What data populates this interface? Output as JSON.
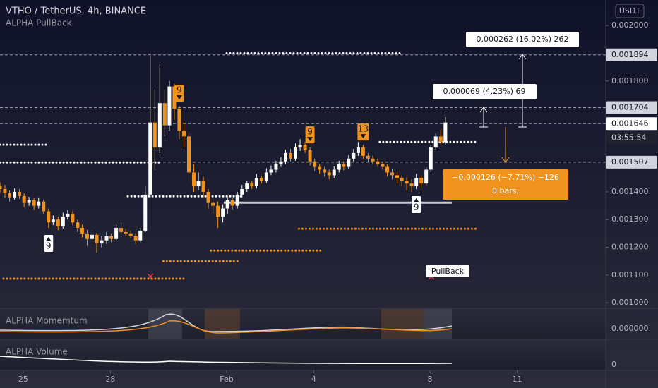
{
  "chart_data": {
    "type": "candlestick",
    "title": "VTHO / TetherUS, 4h, BINANCE",
    "subtitle": "ALPHA PullBack",
    "currency_button": "USDT",
    "x": [
      24.2,
      24.37,
      24.53,
      24.7,
      24.87,
      25.03,
      25.2,
      25.37,
      25.53,
      25.7,
      25.87,
      26.03,
      26.2,
      26.37,
      26.53,
      26.7,
      26.87,
      27.03,
      27.2,
      27.37,
      27.53,
      27.7,
      27.87,
      28.03,
      28.2,
      28.37,
      28.53,
      28.7,
      28.87,
      29.03,
      29.2,
      29.37,
      29.53,
      29.7,
      29.87,
      30.03,
      30.2,
      30.37,
      30.53,
      30.7,
      30.87,
      31.03,
      31.2,
      31.37,
      31.53,
      31.7,
      31.87,
      32.03,
      32.2,
      32.37,
      32.53,
      32.7,
      32.87,
      33.03,
      33.2,
      33.37,
      33.53,
      33.7,
      33.87,
      34.03,
      34.2,
      34.37,
      34.53,
      34.7,
      34.87,
      35.03,
      35.2,
      35.37,
      35.53,
      35.7,
      35.87,
      36.03,
      36.2,
      36.37,
      36.53,
      36.7,
      36.87,
      37.03,
      37.2,
      37.37,
      37.53,
      37.7,
      37.87,
      38.03,
      38.2,
      38.37,
      38.53,
      38.7,
      38.87,
      39.03,
      39.2,
      39.37,
      39.53
    ],
    "open": [
      0.00142,
      0.00141,
      0.001395,
      0.00138,
      0.0014,
      0.001385,
      0.00136,
      0.00137,
      0.00135,
      0.001365,
      0.00133,
      0.00129,
      0.0013,
      0.001275,
      0.00131,
      0.00132,
      0.00129,
      0.00127,
      0.00125,
      0.00123,
      0.001245,
      0.001215,
      0.001225,
      0.00124,
      0.00123,
      0.00127,
      0.001255,
      0.00125,
      0.00124,
      0.001225,
      0.00126,
      0.00139,
      0.00165,
      0.00156,
      0.00172,
      0.00164,
      0.00178,
      0.0017,
      0.00162,
      0.0016,
      0.00147,
      0.00142,
      0.00144,
      0.0014,
      0.00136,
      0.00135,
      0.00131,
      0.00134,
      0.00137,
      0.00135,
      0.00139,
      0.00141,
      0.00143,
      0.00142,
      0.00145,
      0.00144,
      0.00147,
      0.00148,
      0.0015,
      0.00151,
      0.00154,
      0.00152,
      0.00156,
      0.00157,
      0.00155,
      0.00151,
      0.00149,
      0.00148,
      0.00147,
      0.00146,
      0.00148,
      0.0015,
      0.00149,
      0.00152,
      0.00154,
      0.00156,
      0.00153,
      0.00152,
      0.00151,
      0.0015,
      0.00149,
      0.00147,
      0.00146,
      0.00145,
      0.00144,
      0.00143,
      0.00142,
      0.00145,
      0.00143,
      0.00148,
      0.00156,
      0.0016,
      0.00158
    ],
    "high": [
      0.001435,
      0.001425,
      0.001405,
      0.001412,
      0.00141,
      0.001395,
      0.001382,
      0.001378,
      0.00138,
      0.001372,
      0.00134,
      0.001315,
      0.00131,
      0.001325,
      0.001335,
      0.00133,
      0.0013,
      0.001282,
      0.001262,
      0.001258,
      0.001252,
      0.00124,
      0.001255,
      0.00125,
      0.001282,
      0.00129,
      0.001268,
      0.00126,
      0.00125,
      0.00127,
      0.00142,
      0.00189,
      0.00177,
      0.00186,
      0.00177,
      0.0018,
      0.00179,
      0.00171,
      0.00165,
      0.00161,
      0.0015,
      0.00147,
      0.001455,
      0.00141,
      0.001375,
      0.001365,
      0.001355,
      0.001385,
      0.00138,
      0.0014,
      0.001425,
      0.00144,
      0.00144,
      0.001465,
      0.001458,
      0.001485,
      0.001495,
      0.001512,
      0.001525,
      0.001552,
      0.001555,
      0.001575,
      0.00159,
      0.00158,
      0.00156,
      0.00152,
      0.0015,
      0.00149,
      0.00148,
      0.001492,
      0.001512,
      0.00151,
      0.001532,
      0.001555,
      0.00158,
      0.00157,
      0.00154,
      0.00153,
      0.00152,
      0.00151,
      0.0015,
      0.001482,
      0.001472,
      0.00146,
      0.001452,
      0.001445,
      0.001465,
      0.00146,
      0.00149,
      0.00157,
      0.00161,
      0.001625,
      0.00167
    ],
    "low": [
      0.001398,
      0.00138,
      0.001365,
      0.001372,
      0.001375,
      0.001345,
      0.00135,
      0.001335,
      0.00134,
      0.00132,
      0.00127,
      0.00128,
      0.001262,
      0.001268,
      0.0013,
      0.00128,
      0.001255,
      0.001235,
      0.001205,
      0.00122,
      0.00118,
      0.0012,
      0.001212,
      0.001218,
      0.001225,
      0.001245,
      0.00124,
      0.001232,
      0.001212,
      0.001218,
      0.001255,
      0.00138,
      0.00148,
      0.00154,
      0.0016,
      0.00162,
      0.00166,
      0.00159,
      0.00156,
      0.00144,
      0.0014,
      0.001405,
      0.00138,
      0.00134,
      0.00132,
      0.00127,
      0.00129,
      0.00132,
      0.001335,
      0.00134,
      0.00138,
      0.0014,
      0.00141,
      0.001412,
      0.00143,
      0.001432,
      0.00146,
      0.00147,
      0.00149,
      0.0015,
      0.00151,
      0.001512,
      0.001548,
      0.00154,
      0.001495,
      0.001475,
      0.001465,
      0.001455,
      0.001445,
      0.00145,
      0.00147,
      0.001478,
      0.001482,
      0.00151,
      0.00153,
      0.00152,
      0.001508,
      0.0015,
      0.00149,
      0.00148,
      0.001455,
      0.001445,
      0.00143,
      0.00142,
      0.001405,
      0.0014,
      0.00141,
      0.001415,
      0.00142,
      0.00147,
      0.00155,
      0.00157,
      0.00157
    ],
    "close": [
      0.00141,
      0.001395,
      0.00138,
      0.0014,
      0.001385,
      0.00136,
      0.00137,
      0.00135,
      0.001365,
      0.00133,
      0.00129,
      0.0013,
      0.001275,
      0.00131,
      0.00132,
      0.00129,
      0.00127,
      0.00125,
      0.00123,
      0.001245,
      0.001215,
      0.001225,
      0.00124,
      0.00123,
      0.00127,
      0.001255,
      0.00125,
      0.00124,
      0.001225,
      0.00126,
      0.00139,
      0.00165,
      0.00156,
      0.00172,
      0.00164,
      0.00178,
      0.0017,
      0.00162,
      0.0016,
      0.00147,
      0.00142,
      0.00144,
      0.0014,
      0.00136,
      0.00135,
      0.00131,
      0.00134,
      0.00137,
      0.00135,
      0.00139,
      0.00141,
      0.00143,
      0.00142,
      0.00145,
      0.00144,
      0.00147,
      0.00148,
      0.0015,
      0.00151,
      0.00154,
      0.00152,
      0.00156,
      0.00157,
      0.00155,
      0.00151,
      0.00149,
      0.00148,
      0.00147,
      0.00146,
      0.00148,
      0.0015,
      0.00149,
      0.00152,
      0.00154,
      0.00156,
      0.00153,
      0.00152,
      0.00151,
      0.0015,
      0.00149,
      0.00147,
      0.00146,
      0.00145,
      0.00144,
      0.00143,
      0.00142,
      0.00145,
      0.00143,
      0.00148,
      0.00156,
      0.0016,
      0.00158,
      0.00165
    ],
    "up_color": "#ffffff",
    "down_color": "#f0921e",
    "xlim": [
      24.2,
      45.05
    ],
    "xticks": [
      25,
      28,
      {
        "value": 32,
        "label": "Feb"
      },
      {
        "value": 35,
        "label": "4"
      },
      {
        "value": 39,
        "label": "8"
      },
      {
        "value": 42,
        "label": "11"
      }
    ],
    "ylim": [
      0.00098,
      0.002092
    ],
    "yticks": [
      {
        "value": 0.002,
        "label": "0.002000"
      },
      {
        "value": 0.0018,
        "label": "0.001800"
      },
      {
        "value": 0.0014,
        "label": "0.001400"
      },
      {
        "value": 0.0013,
        "label": "0.001300"
      },
      {
        "value": 0.0012,
        "label": "0.001200"
      },
      {
        "value": 0.0011,
        "label": "0.001100"
      },
      {
        "value": 0.001,
        "label": "0.001000"
      }
    ],
    "grid": false,
    "price_labels": [
      {
        "value": 0.001894,
        "label": "0.001894",
        "color": "#d1d4dc"
      },
      {
        "value": 0.001704,
        "label": "0.001704",
        "color": "#d1d4dc"
      },
      {
        "value": 0.001646,
        "label": "0.001646",
        "color": "#ffffff"
      },
      {
        "value": 0.001507,
        "label": "0.001507",
        "color": "#d1d4dc"
      }
    ],
    "countdown": "03:55:54",
    "levels": [
      {
        "value": 0.0019,
        "x": [
          32.0,
          38.05
        ],
        "color": "#ffffff"
      },
      {
        "value": 0.00157,
        "x": [
          24.2,
          25.9
        ],
        "color": "#ffffff"
      },
      {
        "value": 0.001506,
        "x": [
          24.2,
          29.77
        ],
        "color": "#ffffff"
      },
      {
        "value": 0.001384,
        "x": [
          28.6,
          32.55
        ],
        "color": "#ffffff"
      },
      {
        "value": 0.00158,
        "x": [
          37.27,
          40.66
        ],
        "color": "#ffffff"
      },
      {
        "value": 0.001267,
        "x": [
          34.49,
          40.66
        ],
        "color": "#f0921e"
      },
      {
        "value": 0.001188,
        "x": [
          31.46,
          35.29
        ],
        "color": "#f0921e"
      },
      {
        "value": 0.00115,
        "x": [
          29.82,
          32.43
        ],
        "color": "#f0921e"
      },
      {
        "value": 0.001087,
        "x": [
          24.32,
          30.62
        ],
        "color": "#f0921e"
      }
    ],
    "support_line": {
      "value": 0.001361,
      "x": [
        31.9,
        39.75
      ],
      "color": "#c8cad2"
    },
    "markers": [
      {
        "x": 25.87,
        "label": "9",
        "color": "#ffffff",
        "side": "below"
      },
      {
        "x": 30.37,
        "label": "9",
        "color": "#f0921e",
        "side": "above"
      },
      {
        "x": 34.87,
        "label": "9",
        "color": "#f0921e",
        "side": "above"
      },
      {
        "x": 36.7,
        "label": "13",
        "color": "#f0921e",
        "side": "above"
      },
      {
        "x": 38.53,
        "label": "9",
        "color": "#ffffff",
        "side": "below"
      }
    ],
    "measurements": [
      "0.000262 (16.02%) 262",
      "0.000069 (4.23%) 69",
      "−0.000126 (−7.71%) −126",
      "0 bars,"
    ],
    "signal_label": "PullBack",
    "panes": [
      {
        "title": "ALPHA Momemtum",
        "tick": {
          "value": 0,
          "label": "0.000000"
        }
      },
      {
        "title": "ALPHA Volume",
        "tick": 0
      }
    ]
  }
}
